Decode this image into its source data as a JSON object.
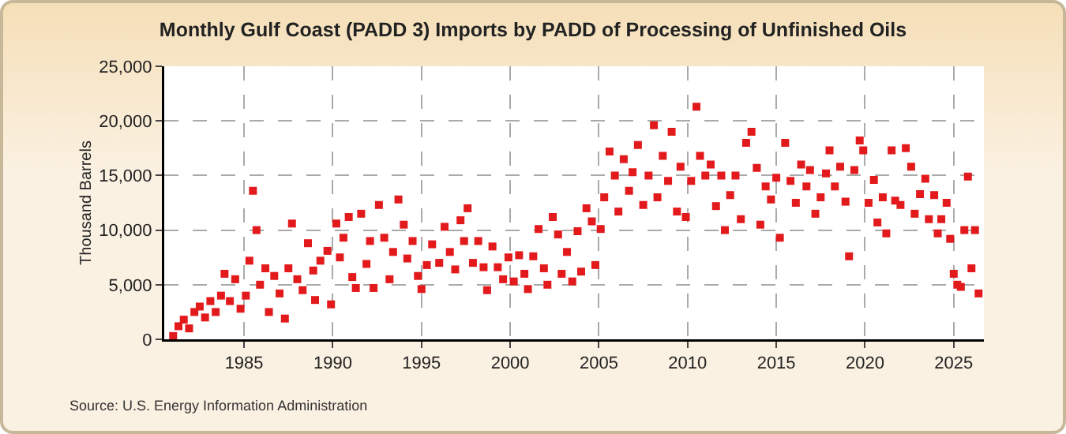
{
  "chart_data": {
    "type": "scatter",
    "title": "Monthly Gulf Coast (PADD 3) Imports by PADD of Processing of Unfinished Oils",
    "ylabel": "Thousand Barrels",
    "marker": "square",
    "grid": true,
    "xlim": [
      1980.5,
      2026.7
    ],
    "xticks": [
      1985,
      1990,
      1995,
      2000,
      2005,
      2010,
      2015,
      2020,
      2025
    ],
    "ylim": [
      0,
      25000
    ],
    "yticks": [
      {
        "value": 0,
        "label": "0"
      },
      {
        "value": 5000,
        "label": "5,000"
      },
      {
        "value": 10000,
        "label": "10,000"
      },
      {
        "value": 15000,
        "label": "15,000"
      },
      {
        "value": 20000,
        "label": "20,000"
      },
      {
        "value": 25000,
        "label": "25,000"
      }
    ],
    "annotations": [
      "Source: U.S. Energy Information Administration"
    ],
    "series": [
      {
        "color": "#e31a1c",
        "x": [
          1981.0,
          1981.3,
          1981.6,
          1981.9,
          1982.2,
          1982.5,
          1982.8,
          1983.1,
          1983.4,
          1983.7,
          1983.9,
          1984.2,
          1984.5,
          1984.8,
          1985.1,
          1985.3,
          1985.5,
          1985.7,
          1985.9,
          1986.2,
          1986.4,
          1986.7,
          1987.0,
          1987.3,
          1987.5,
          1987.7,
          1988.0,
          1988.3,
          1988.6,
          1988.9,
          1989.0,
          1989.3,
          1989.7,
          1989.9,
          1990.2,
          1990.4,
          1990.6,
          1990.9,
          1991.1,
          1991.3,
          1991.6,
          1991.9,
          1992.1,
          1992.3,
          1992.6,
          1992.9,
          1993.2,
          1993.4,
          1993.7,
          1994.0,
          1994.2,
          1994.5,
          1994.8,
          1995.0,
          1995.3,
          1995.6,
          1996.0,
          1996.3,
          1996.6,
          1996.9,
          1997.2,
          1997.4,
          1997.6,
          1997.9,
          1998.2,
          1998.5,
          1998.7,
          1999.0,
          1999.3,
          1999.6,
          1999.9,
          2000.2,
          2000.5,
          2000.8,
          2001.0,
          2001.3,
          2001.6,
          2001.9,
          2002.1,
          2002.4,
          2002.7,
          2002.9,
          2003.2,
          2003.5,
          2003.8,
          2004.0,
          2004.3,
          2004.6,
          2004.8,
          2005.1,
          2005.3,
          2005.6,
          2005.9,
          2006.1,
          2006.4,
          2006.7,
          2006.9,
          2007.2,
          2007.5,
          2007.8,
          2008.1,
          2008.3,
          2008.6,
          2008.9,
          2009.1,
          2009.4,
          2009.6,
          2009.9,
          2010.2,
          2010.5,
          2010.7,
          2011.0,
          2011.3,
          2011.6,
          2011.9,
          2012.1,
          2012.4,
          2012.7,
          2013.0,
          2013.3,
          2013.6,
          2013.9,
          2014.1,
          2014.4,
          2014.7,
          2015.0,
          2015.2,
          2015.5,
          2015.8,
          2016.1,
          2016.4,
          2016.7,
          2016.9,
          2017.2,
          2017.5,
          2017.8,
          2018.0,
          2018.3,
          2018.6,
          2018.9,
          2019.1,
          2019.4,
          2019.7,
          2019.9,
          2020.2,
          2020.5,
          2020.7,
          2021.0,
          2021.2,
          2021.5,
          2021.7,
          2022.0,
          2022.3,
          2022.6,
          2022.8,
          2023.1,
          2023.4,
          2023.6,
          2023.9,
          2024.1,
          2024.3,
          2024.6,
          2024.8,
          2025.0,
          2025.2,
          2025.4,
          2025.6,
          2025.8,
          2026.0,
          2026.2,
          2026.4
        ],
        "values": [
          300,
          1200,
          1800,
          1000,
          2500,
          3000,
          2000,
          3500,
          2500,
          4000,
          6000,
          3500,
          5500,
          2800,
          4000,
          7200,
          13600,
          10000,
          5000,
          6500,
          2500,
          5800,
          4200,
          1900,
          6500,
          10600,
          5500,
          4500,
          8800,
          6300,
          3600,
          7200,
          8100,
          3200,
          10600,
          7500,
          9300,
          11200,
          5700,
          4700,
          11500,
          6900,
          9000,
          4700,
          12300,
          9300,
          5500,
          8000,
          12800,
          10500,
          7400,
          9000,
          5800,
          4600,
          6800,
          8700,
          7000,
          10300,
          8000,
          6400,
          10900,
          9000,
          12000,
          7000,
          9000,
          6600,
          4500,
          8500,
          6600,
          5500,
          7500,
          5300,
          7700,
          6000,
          4600,
          7600,
          10100,
          6500,
          5000,
          11200,
          9600,
          6000,
          8000,
          5300,
          9900,
          6200,
          12000,
          10800,
          6800,
          10100,
          13000,
          17200,
          15000,
          11700,
          16500,
          13600,
          15300,
          17800,
          12300,
          15000,
          19600,
          13000,
          16800,
          14500,
          19000,
          11700,
          15800,
          11200,
          14500,
          21300,
          16800,
          15000,
          16000,
          12200,
          15000,
          10000,
          13200,
          15000,
          11000,
          18000,
          19000,
          15700,
          10500,
          14000,
          12800,
          14800,
          9300,
          18000,
          14500,
          12500,
          16000,
          14000,
          15500,
          11500,
          13000,
          15200,
          17300,
          14000,
          15800,
          12600,
          7600,
          15500,
          18200,
          17300,
          12500,
          14600,
          10700,
          13000,
          9700,
          17300,
          12700,
          12300,
          17500,
          15800,
          11500,
          13300,
          14700,
          11000,
          13200,
          9700,
          11000,
          12500,
          9200,
          6000,
          5000,
          4800,
          10000,
          14900,
          6500,
          10000,
          4200
        ]
      }
    ]
  }
}
